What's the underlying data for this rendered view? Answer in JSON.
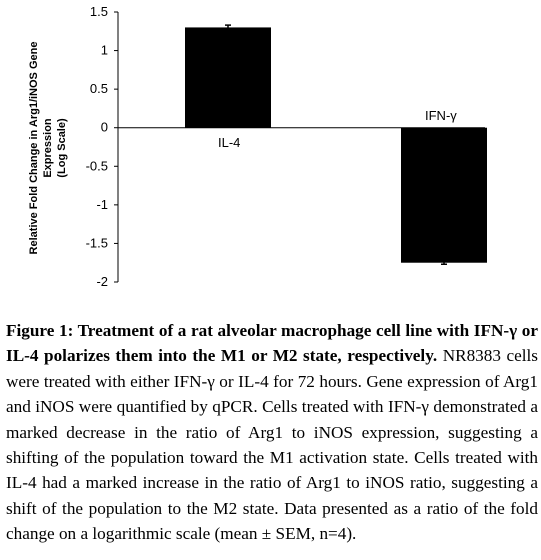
{
  "chart_data": {
    "type": "bar",
    "categories": [
      "IL-4",
      "IFN-γ"
    ],
    "values": [
      1.3,
      -1.75
    ],
    "error": [
      0.03,
      0.02
    ],
    "ylabel_lines": [
      "Relative Fold Change in Arg1/iNOS Gene",
      "Expression",
      "(Log Scale)"
    ],
    "ylim": [
      -2,
      1.5
    ],
    "yticks": [
      "1.5",
      "1",
      "0.5",
      "0",
      "-0.5",
      "-1",
      "-1.5",
      "-2"
    ],
    "bar_color": "#000000"
  },
  "caption": {
    "bold": "Figure 1: Treatment of a rat alveolar macrophage cell line with IFN-γ or IL-4 polarizes them into the M1 or M2 state, respectively.",
    "text": "NR8383 cells were treated with either IFN-γ or IL-4 for 72 hours. Gene expression of Arg1 and iNOS were quantified by qPCR. Cells treated with IFN-γ demonstrated a marked decrease in the ratio of Arg1 to iNOS expression, suggesting a shifting of the population toward the M1 activation state. Cells treated with IL-4 had a marked increase in the ratio of Arg1 to iNOS ratio, suggesting a shift of the population to the M2 state. Data presented as a ratio of the fold change on a logarithmic scale (mean ± SEM, n=4)."
  }
}
